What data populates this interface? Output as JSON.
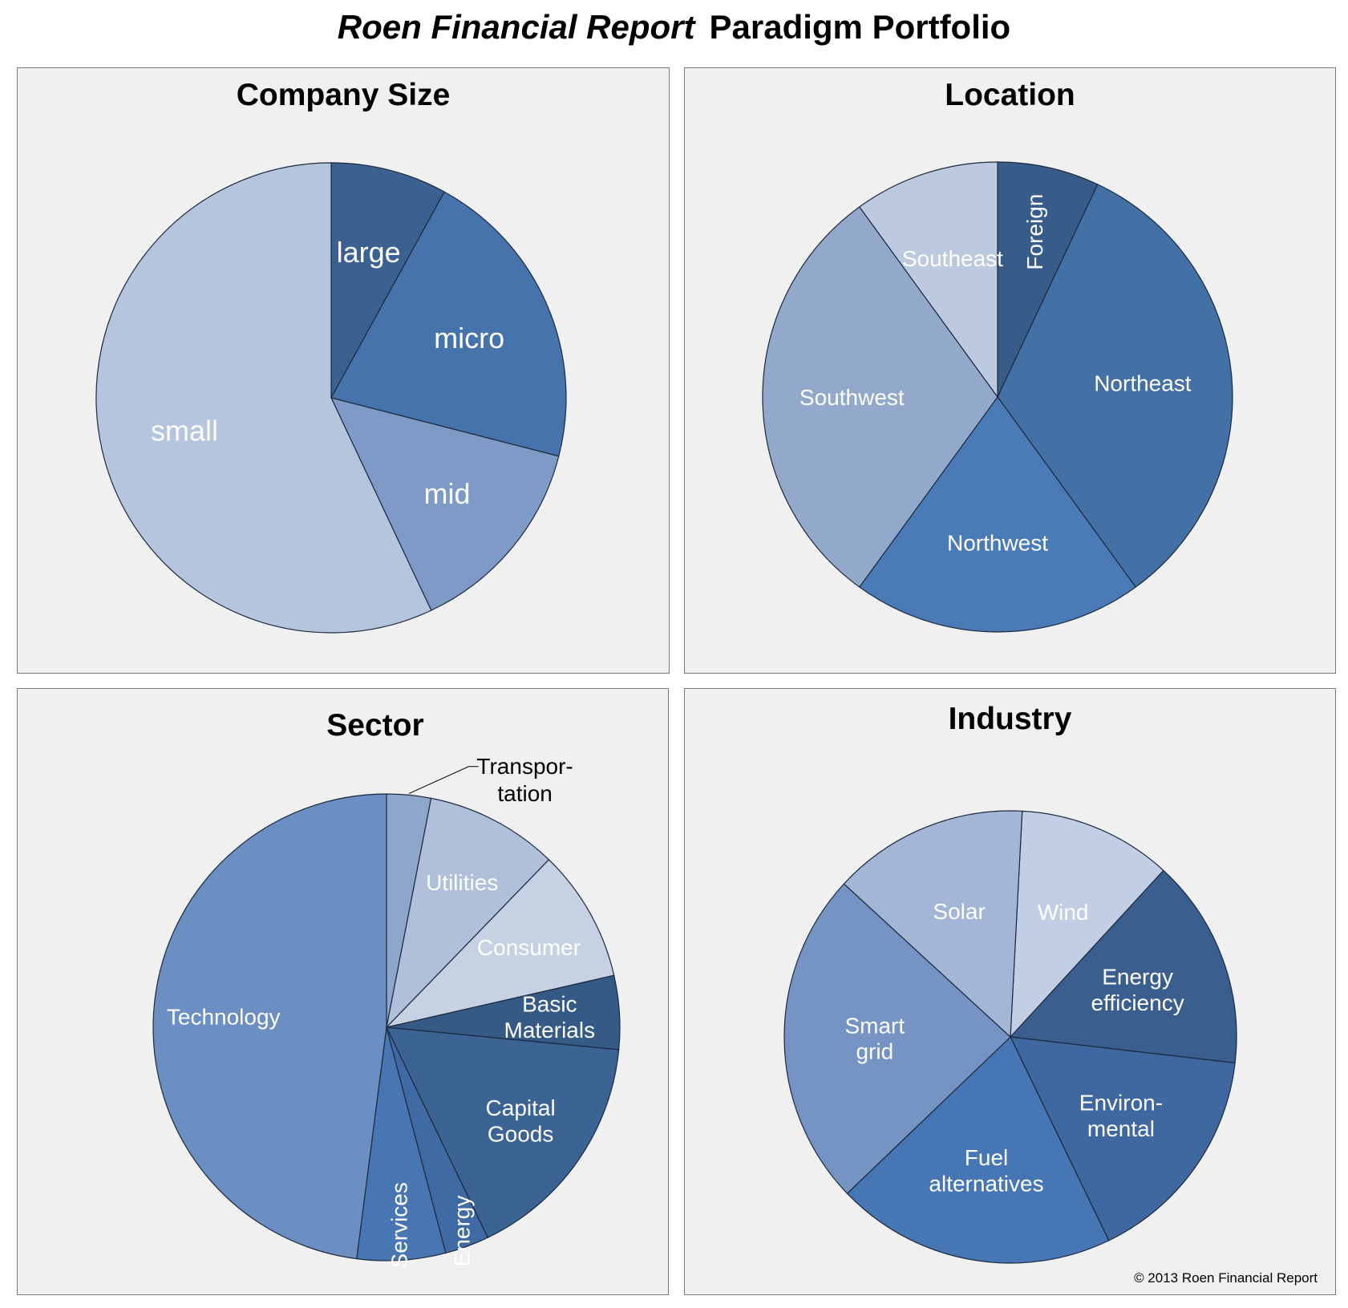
{
  "title": {
    "brand": "Roen Financial Report",
    "rest": "Paradigm Portfolio"
  },
  "copyright": "© 2013 Roen Financial Report",
  "chart_data": [
    {
      "type": "pie",
      "title": "Company Size",
      "start_angle_deg": 0,
      "direction": "clockwise",
      "slices": [
        {
          "label": "large",
          "value": 8,
          "color": "#3b6191"
        },
        {
          "label": "micro",
          "value": 21,
          "color": "#4673ab"
        },
        {
          "label": "mid",
          "value": 14,
          "color": "#7d9bc6"
        },
        {
          "label": "small",
          "value": 57,
          "color": "#b5c5de"
        }
      ]
    },
    {
      "type": "pie",
      "title": "Location",
      "start_angle_deg": 0,
      "direction": "clockwise",
      "slices": [
        {
          "label": "Foreign",
          "value": 7,
          "color": "#375c8a"
        },
        {
          "label": "Northeast",
          "value": 33,
          "color": "#4370a5"
        },
        {
          "label": "Northwest",
          "value": 20,
          "color": "#4a7bb7"
        },
        {
          "label": "Southwest",
          "value": 30,
          "color": "#93a9cc"
        },
        {
          "label": "Southeast",
          "value": 10,
          "color": "#bdc9df"
        }
      ]
    },
    {
      "type": "pie",
      "title": "Sector",
      "start_angle_deg": 0,
      "direction": "clockwise",
      "slices": [
        {
          "label": "Transpor- tation",
          "value": 3,
          "color": "#8fa6cb"
        },
        {
          "label": "Utilities",
          "value": 9,
          "color": "#b0bfda"
        },
        {
          "label": "Consumer",
          "value": 9,
          "color": "#c6d1e4"
        },
        {
          "label": "Basic Materials",
          "value": 5,
          "color": "#355a86"
        },
        {
          "label": "Capital Goods",
          "value": 16,
          "color": "#3b6394"
        },
        {
          "label": "Energy",
          "value": 3,
          "color": "#3f6aa3"
        },
        {
          "label": "Services",
          "value": 6,
          "color": "#4876b3"
        },
        {
          "label": "Technology",
          "value": 47,
          "color": "#6b8fc2"
        }
      ]
    },
    {
      "type": "pie",
      "title": "Industry",
      "start_angle_deg": 3,
      "direction": "clockwise",
      "slices": [
        {
          "label": "Wind",
          "value": 11,
          "color": "#c2cee3"
        },
        {
          "label": "Energy efficiency",
          "value": 15,
          "color": "#3a5f8f"
        },
        {
          "label": "Environ- mental",
          "value": 16,
          "color": "#3f68a0"
        },
        {
          "label": "Fuel alternatives",
          "value": 20,
          "color": "#4676b3"
        },
        {
          "label": "Smart grid",
          "value": 24,
          "color": "#7594c4"
        },
        {
          "label": "Solar",
          "value": 14,
          "color": "#a3b6d5"
        }
      ]
    }
  ]
}
